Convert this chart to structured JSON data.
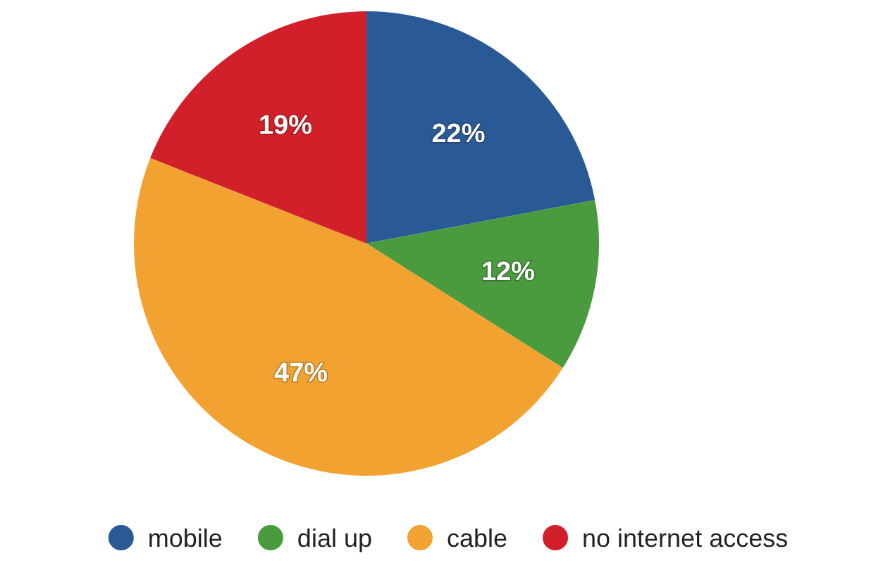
{
  "chart_data": {
    "type": "pie",
    "categories": [
      "mobile",
      "dial up",
      "cable",
      "no internet access"
    ],
    "values": [
      22,
      12,
      47,
      19
    ],
    "colors": [
      "#2a5a96",
      "#4a9a3e",
      "#f2a230",
      "#d2202a"
    ],
    "value_labels": [
      "22%",
      "12%",
      "47%",
      "19%"
    ],
    "legend": "bottom"
  }
}
